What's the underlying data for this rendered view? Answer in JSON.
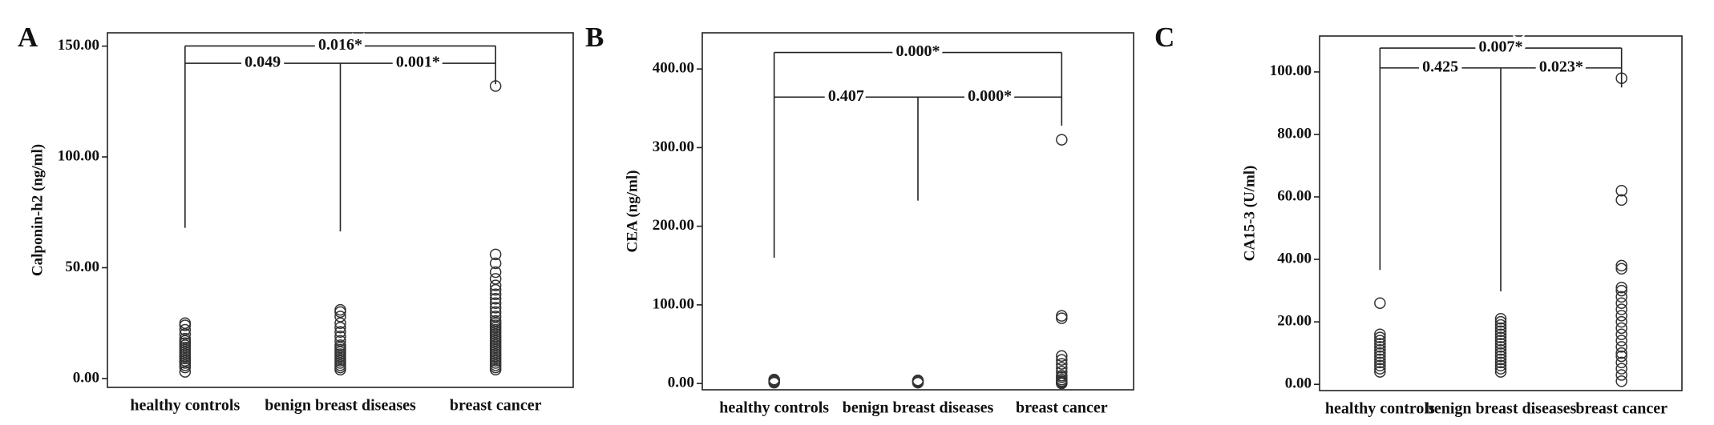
{
  "chart_data": [
    {
      "type": "strip",
      "label": "A",
      "ylabel": "Calponin-h2 (ng/ml)",
      "categories": [
        "healthy controls",
        "benign breast diseases",
        "breast cancer"
      ],
      "values": [
        [
          3,
          5,
          6,
          7,
          8,
          8,
          9,
          10,
          10,
          11,
          12,
          12,
          13,
          14,
          15,
          16,
          17,
          18,
          20,
          22,
          24,
          25
        ],
        [
          4,
          5,
          6,
          7,
          8,
          9,
          10,
          11,
          12,
          13,
          14,
          15,
          17,
          19,
          21,
          23,
          25,
          28,
          30,
          31
        ],
        [
          4,
          5,
          6,
          7,
          8,
          9,
          10,
          11,
          12,
          13,
          14,
          15,
          16,
          17,
          18,
          19,
          20,
          21,
          22,
          23,
          24,
          25,
          26,
          28,
          30,
          32,
          34,
          36,
          38,
          40,
          42,
          45,
          48,
          52,
          56,
          132
        ]
      ],
      "ylim": [
        -4,
        156
      ],
      "yticks": [
        {
          "value": 0,
          "label": "0.00"
        },
        {
          "value": 50,
          "label": "50.00"
        },
        {
          "value": 100,
          "label": "100.00"
        },
        {
          "value": 150,
          "label": "150.00"
        }
      ],
      "comparisons": [
        {
          "groups": [
            "healthy controls",
            "breast cancer"
          ],
          "p": "0.016*"
        },
        {
          "groups": [
            "healthy controls",
            "benign breast diseases"
          ],
          "p": "0.049"
        },
        {
          "groups": [
            "benign breast diseases",
            "breast cancer"
          ],
          "p": "0.001*"
        }
      ]
    },
    {
      "type": "strip",
      "label": "B",
      "ylabel": "CEA (ng/ml)",
      "categories": [
        "healthy controls",
        "benign breast diseases",
        "breast cancer"
      ],
      "values": [
        [
          1,
          2,
          3,
          4,
          5
        ],
        [
          1,
          2,
          3,
          4
        ],
        [
          0,
          1,
          2,
          3,
          5,
          8,
          10,
          15,
          20,
          25,
          30,
          35,
          83,
          86,
          310
        ]
      ],
      "ylim": [
        -8,
        446
      ],
      "yticks": [
        {
          "value": 0,
          "label": "0.00"
        },
        {
          "value": 100,
          "label": "100.00"
        },
        {
          "value": 200,
          "label": "200.00"
        },
        {
          "value": 300,
          "label": "300.00"
        },
        {
          "value": 400,
          "label": "400.00"
        }
      ],
      "comparisons": [
        {
          "groups": [
            "healthy controls",
            "breast cancer"
          ],
          "p": "0.000*"
        },
        {
          "groups": [
            "healthy controls",
            "benign breast diseases"
          ],
          "p": "0.407"
        },
        {
          "groups": [
            "benign breast diseases",
            "breast cancer"
          ],
          "p": "0.000*"
        }
      ]
    },
    {
      "type": "strip",
      "label": "C",
      "ylabel": "CA15-3 (U/ml)",
      "categories": [
        "healthy controls",
        "benign breast diseases",
        "breast cancer"
      ],
      "values": [
        [
          4,
          5,
          6,
          7,
          8,
          9,
          10,
          11,
          12,
          13,
          14,
          15,
          16,
          26
        ],
        [
          4,
          5,
          6,
          7,
          8,
          9,
          10,
          11,
          12,
          13,
          14,
          15,
          16,
          17,
          18,
          19,
          20,
          21
        ],
        [
          1,
          3,
          5,
          7,
          9,
          10,
          12,
          14,
          16,
          18,
          20,
          22,
          24,
          26,
          28,
          30,
          31,
          37,
          38,
          59,
          62,
          98
        ]
      ],
      "ylim": [
        -2,
        111.5
      ],
      "yticks": [
        {
          "value": 0,
          "label": "0.00"
        },
        {
          "value": 20,
          "label": "20.00"
        },
        {
          "value": 40,
          "label": "40.00"
        },
        {
          "value": 60,
          "label": "60.00"
        },
        {
          "value": 80,
          "label": "80.00"
        },
        {
          "value": 100,
          "label": "100.00"
        }
      ],
      "comparisons": [
        {
          "groups": [
            "healthy controls",
            "breast cancer"
          ],
          "p": "0.007*"
        },
        {
          "groups": [
            "healthy controls",
            "benign breast diseases"
          ],
          "p": "0.425"
        },
        {
          "groups": [
            "benign breast diseases",
            "breast cancer"
          ],
          "p": "0.023*"
        }
      ]
    }
  ]
}
